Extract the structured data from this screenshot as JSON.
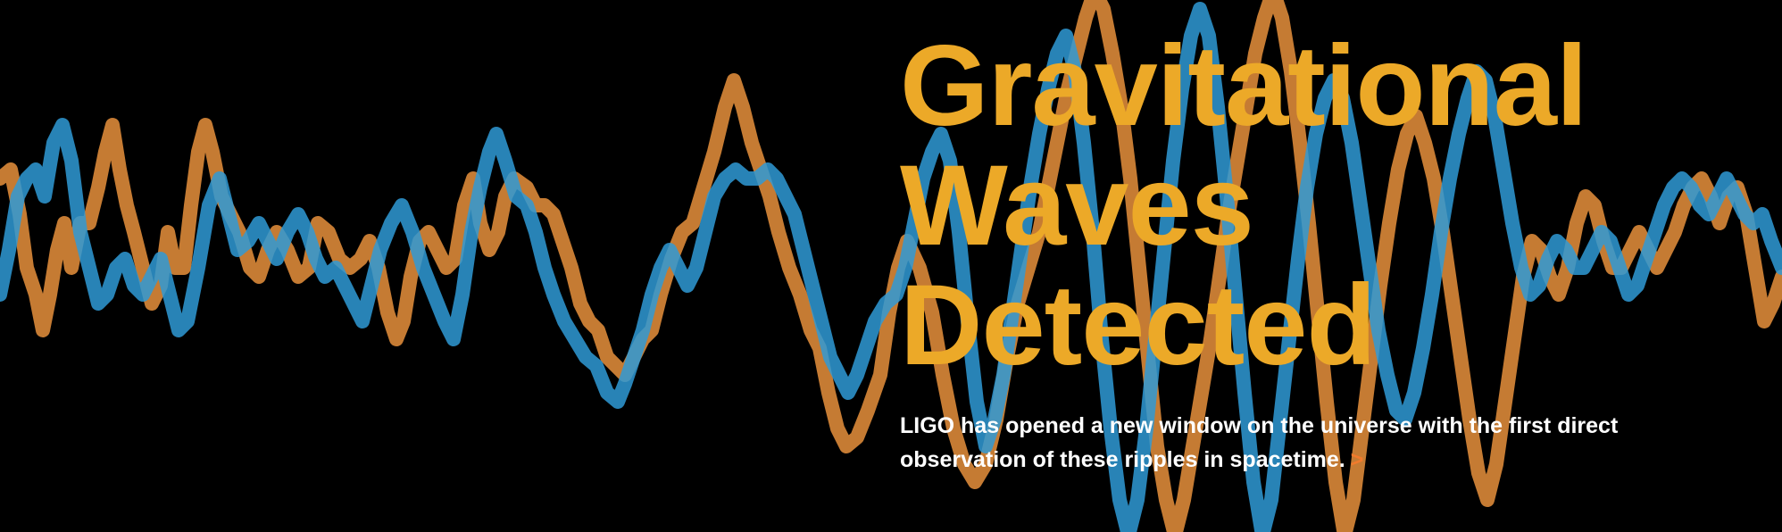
{
  "hero": {
    "headline": [
      "Gravitational",
      "Waves",
      "Detected"
    ],
    "description_lines": [
      "LIGO has opened a new window on the universe with the first direct",
      "observation of these ripples in spacetime."
    ],
    "more_link_label": ">"
  },
  "colors": {
    "background": "#000000",
    "headline": "#eca928",
    "text": "#ffffff",
    "link": "#f07a2c",
    "wave_orange": "#e8903c",
    "wave_blue": "#2f9ad6"
  }
}
